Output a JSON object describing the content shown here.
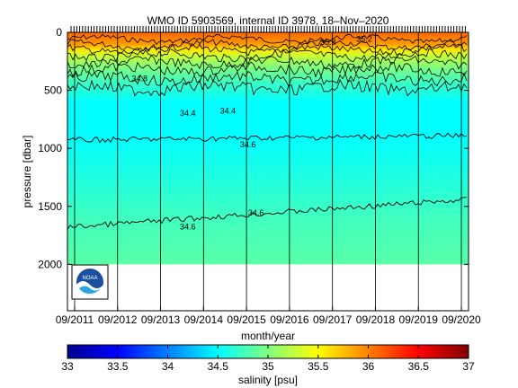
{
  "chart_data": {
    "type": "heatmap",
    "title": "WMO ID 5903569, internal ID 3978, 18–Nov–2020",
    "xlabel": "month/year",
    "ylabel": "pressure [dbar]",
    "x_ticks": [
      "09/2011",
      "09/2012",
      "09/2013",
      "09/2014",
      "09/2015",
      "09/2016",
      "09/2017",
      "09/2018",
      "09/2019",
      "09/2020"
    ],
    "y_ticks": [
      "0",
      "500",
      "1000",
      "1500",
      "2000"
    ],
    "y_values": [
      0,
      500,
      1000,
      1500,
      2000
    ],
    "ylim": [
      0,
      2400
    ],
    "y_reversed": true,
    "x_range": [
      "2011-07",
      "2020-11"
    ],
    "colorbar": {
      "label": "salinity [psu]",
      "ticks": [
        "33",
        "33.5",
        "34",
        "34.5",
        "35",
        "35.5",
        "36",
        "36.5",
        "37"
      ],
      "range": [
        33,
        37
      ],
      "colormap": "jet"
    },
    "contour_labels": [
      "34.4",
      "34.4",
      "34.6",
      "34.6",
      "34.6",
      "34.8",
      "35.2",
      "35.8"
    ],
    "salinity_profile": [
      {
        "pressure": 0,
        "salinity": 36.1
      },
      {
        "pressure": 50,
        "salinity": 36.0
      },
      {
        "pressure": 100,
        "salinity": 35.9
      },
      {
        "pressure": 150,
        "salinity": 35.6
      },
      {
        "pressure": 200,
        "salinity": 35.3
      },
      {
        "pressure": 300,
        "salinity": 35.0
      },
      {
        "pressure": 450,
        "salinity": 34.7
      },
      {
        "pressure": 600,
        "salinity": 34.5
      },
      {
        "pressure": 900,
        "salinity": 34.5
      },
      {
        "pressure": 1200,
        "salinity": 34.6
      },
      {
        "pressure": 1600,
        "salinity": 34.75
      },
      {
        "pressure": 2000,
        "salinity": 34.85
      }
    ],
    "max_pressure": 2000,
    "year_marker_label": "",
    "logo_text": "NOAA"
  },
  "colors": {
    "jet": [
      "#00008f",
      "#0000ff",
      "#0080ff",
      "#00ffff",
      "#80ff80",
      "#ffff00",
      "#ff8000",
      "#ff0000",
      "#800000"
    ],
    "background": "#ffffff",
    "contour": "#000000"
  }
}
